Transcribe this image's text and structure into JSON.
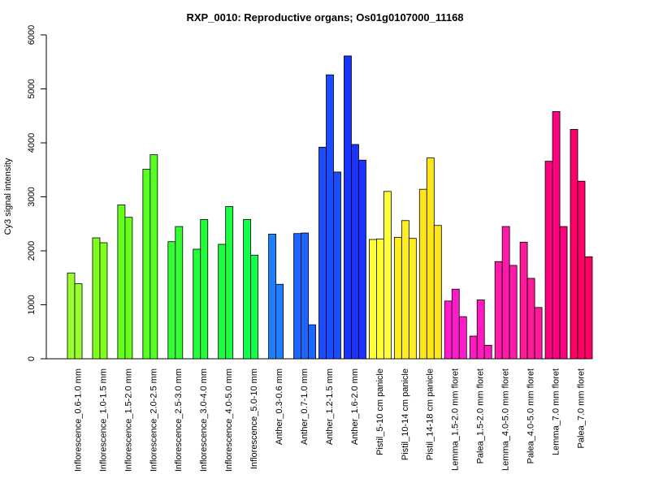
{
  "chart_data": {
    "type": "bar",
    "title": "RXP_0010: Reproductive organs; Os01g0107000_11168",
    "xlabel": "",
    "ylabel": "Cy3 signal intensity",
    "ylim": [
      0,
      6000
    ],
    "yticks": [
      0,
      1000,
      2000,
      3000,
      4000,
      5000,
      6000
    ],
    "grid": false,
    "legend": "none",
    "groups": [
      {
        "label": "Inflorescence_0.6-1.0 mm",
        "color": "#99ff33",
        "values": [
          1590,
          1390
        ]
      },
      {
        "label": "Inflorescence_1.0-1.5 mm",
        "color": "#80ff1f",
        "values": [
          2240,
          2150
        ]
      },
      {
        "label": "Inflorescence_1.5-2.0 mm",
        "color": "#66ff1a",
        "values": [
          2850,
          2620
        ]
      },
      {
        "label": "Inflorescence_2.0-2.5 mm",
        "color": "#55ff22",
        "values": [
          3510,
          3780
        ]
      },
      {
        "label": "Inflorescence_2.5-3.0 mm",
        "color": "#33ff33",
        "values": [
          2170,
          2450
        ]
      },
      {
        "label": "Inflorescence_3.0-4.0 mm",
        "color": "#22ff3a",
        "values": [
          2030,
          2580
        ]
      },
      {
        "label": "Inflorescence_4.0-5.0 mm",
        "color": "#1aff44",
        "values": [
          2120,
          2820
        ]
      },
      {
        "label": "Inflorescence_5.0-10 mm",
        "color": "#11ff4d",
        "values": [
          2580,
          1920
        ]
      },
      {
        "label": "Anther_0.3-0.6 mm",
        "color": "#1a80ff",
        "values": [
          2310,
          1380
        ]
      },
      {
        "label": "Anther_0.7-1.0 mm",
        "color": "#1a66ff",
        "values": [
          2320,
          2330,
          630
        ]
      },
      {
        "label": "Anther_1.2-1.5 mm",
        "color": "#1a4dff",
        "values": [
          3920,
          5260,
          3460
        ]
      },
      {
        "label": "Anther_1.6-2.0 mm",
        "color": "#1a33ff",
        "values": [
          5610,
          3970,
          3680
        ]
      },
      {
        "label": "Pistil_5-10 cm panicle",
        "color": "#ffff33",
        "values": [
          2210,
          2220,
          3100
        ]
      },
      {
        "label": "Pistil_10-14 cm panicle",
        "color": "#ffee22",
        "values": [
          2250,
          2560,
          2230
        ]
      },
      {
        "label": "Pistil_14-18 cm panicle",
        "color": "#ffe61a",
        "values": [
          3140,
          3720,
          2470
        ]
      },
      {
        "label": "Lemma_1.5-2.0 mm floret",
        "color": "#ff1acc",
        "values": [
          1070,
          1290,
          780
        ]
      },
      {
        "label": "Palea_1.5-2.0 mm floret",
        "color": "#ff1ac0",
        "values": [
          420,
          1090,
          250
        ]
      },
      {
        "label": "Lemma_4.0-5.0 mm floret",
        "color": "#ff1aaa",
        "values": [
          1800,
          2450,
          1730
        ]
      },
      {
        "label": "Palea_4.0-5.0 mm floret",
        "color": "#ff1a99",
        "values": [
          2160,
          1490,
          950
        ]
      },
      {
        "label": "Lemma_7.0 mm floret",
        "color": "#ff0080",
        "values": [
          3660,
          4580,
          2450
        ]
      },
      {
        "label": "Palea_7.0 mm floret",
        "color": "#ff0066",
        "values": [
          4250,
          3290,
          1890
        ]
      }
    ]
  }
}
